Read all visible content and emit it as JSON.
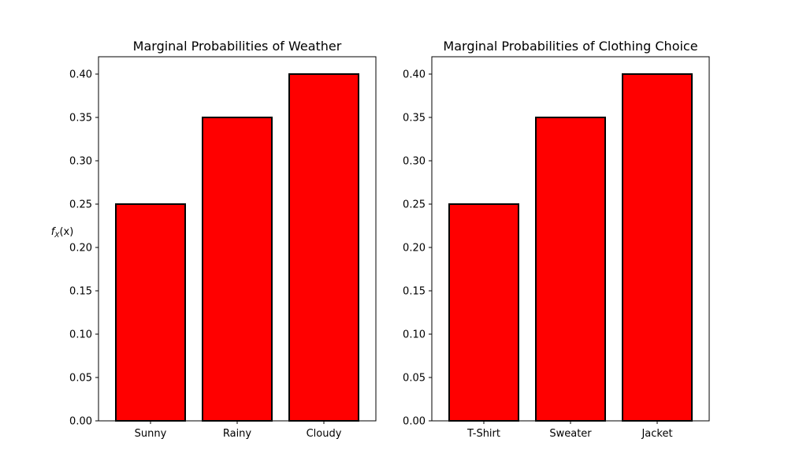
{
  "colors": {
    "bar_fill": "#ff0000",
    "bar_edge": "#000000",
    "axis": "#000000",
    "background": "#ffffff"
  },
  "chart_data": [
    {
      "type": "bar",
      "title": "Marginal Probabilities of Weather",
      "categories": [
        "Sunny",
        "Rainy",
        "Cloudy"
      ],
      "values": [
        0.25,
        0.35,
        0.4
      ],
      "xlabel": "",
      "ylabel": "fX(x)",
      "ylabel_main": "f",
      "ylabel_sub": "X",
      "ylabel_tail": "(x)",
      "ylim": [
        0,
        0.42
      ],
      "yticks": [
        0.0,
        0.05,
        0.1,
        0.15,
        0.2,
        0.25,
        0.3,
        0.35,
        0.4
      ],
      "ytick_labels": [
        "0.00",
        "0.05",
        "0.10",
        "0.15",
        "0.20",
        "0.25",
        "0.30",
        "0.35",
        "0.40"
      ],
      "grid": false,
      "legend": "none"
    },
    {
      "type": "bar",
      "title": "Marginal Probabilities of Clothing Choice",
      "categories": [
        "T-Shirt",
        "Sweater",
        "Jacket"
      ],
      "values": [
        0.25,
        0.35,
        0.4
      ],
      "xlabel": "",
      "ylabel": "",
      "ylim": [
        0,
        0.42
      ],
      "yticks": [
        0.0,
        0.05,
        0.1,
        0.15,
        0.2,
        0.25,
        0.3,
        0.35,
        0.4
      ],
      "ytick_labels": [
        "0.00",
        "0.05",
        "0.10",
        "0.15",
        "0.20",
        "0.25",
        "0.30",
        "0.35",
        "0.40"
      ],
      "grid": false,
      "legend": "none"
    }
  ]
}
